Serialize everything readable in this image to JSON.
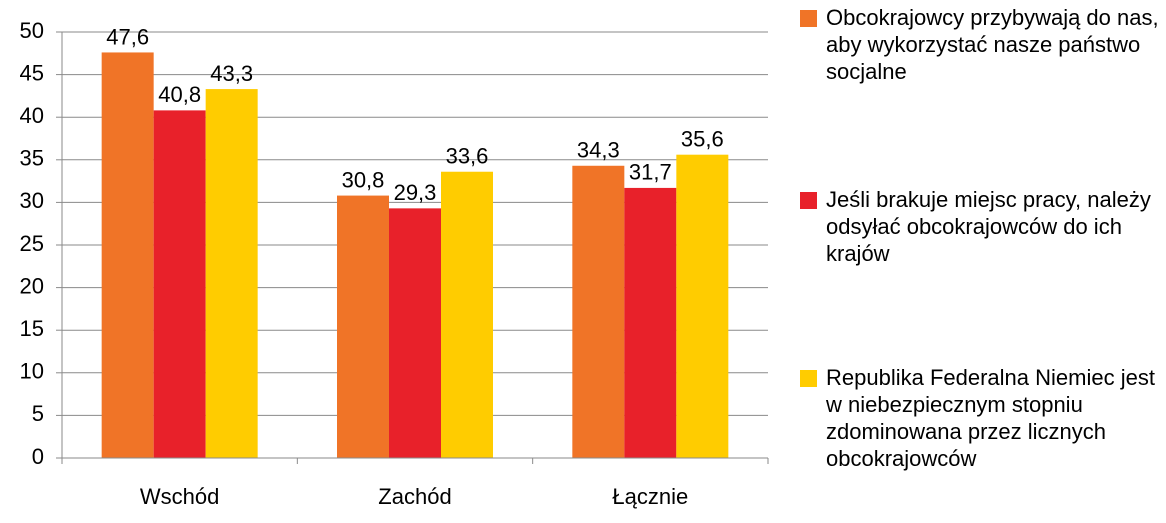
{
  "chart_data": {
    "type": "bar",
    "categories": [
      "Wschód",
      "Zachód",
      "Łącznie"
    ],
    "series": [
      {
        "name": "Obcokrajowcy przybywają do nas, aby wykorzystać nasze państwo socjalne",
        "color": "#f07427",
        "values": [
          47.6,
          30.8,
          34.3
        ],
        "value_labels": [
          "47,6",
          "30,8",
          "34,3"
        ]
      },
      {
        "name": "Jeśli brakuje miejsc pracy, należy odsyłać obcokrajowców do ich krajów",
        "color": "#e8212a",
        "values": [
          40.8,
          29.3,
          31.7
        ],
        "value_labels": [
          "40,8",
          "29,3",
          "31,7"
        ]
      },
      {
        "name": "Republika Federalna Niemiec jest w niebezpiecznym stopniu zdominowana przez licznych obcokrajowców",
        "color": "#ffcc00",
        "values": [
          43.3,
          33.6,
          35.6
        ],
        "value_labels": [
          "43,3",
          "33,6",
          "35,6"
        ]
      }
    ],
    "ylim": [
      0,
      50
    ],
    "yticks": [
      0,
      5,
      10,
      15,
      20,
      25,
      30,
      35,
      40,
      45,
      50
    ],
    "grid": true,
    "legend": "right"
  }
}
